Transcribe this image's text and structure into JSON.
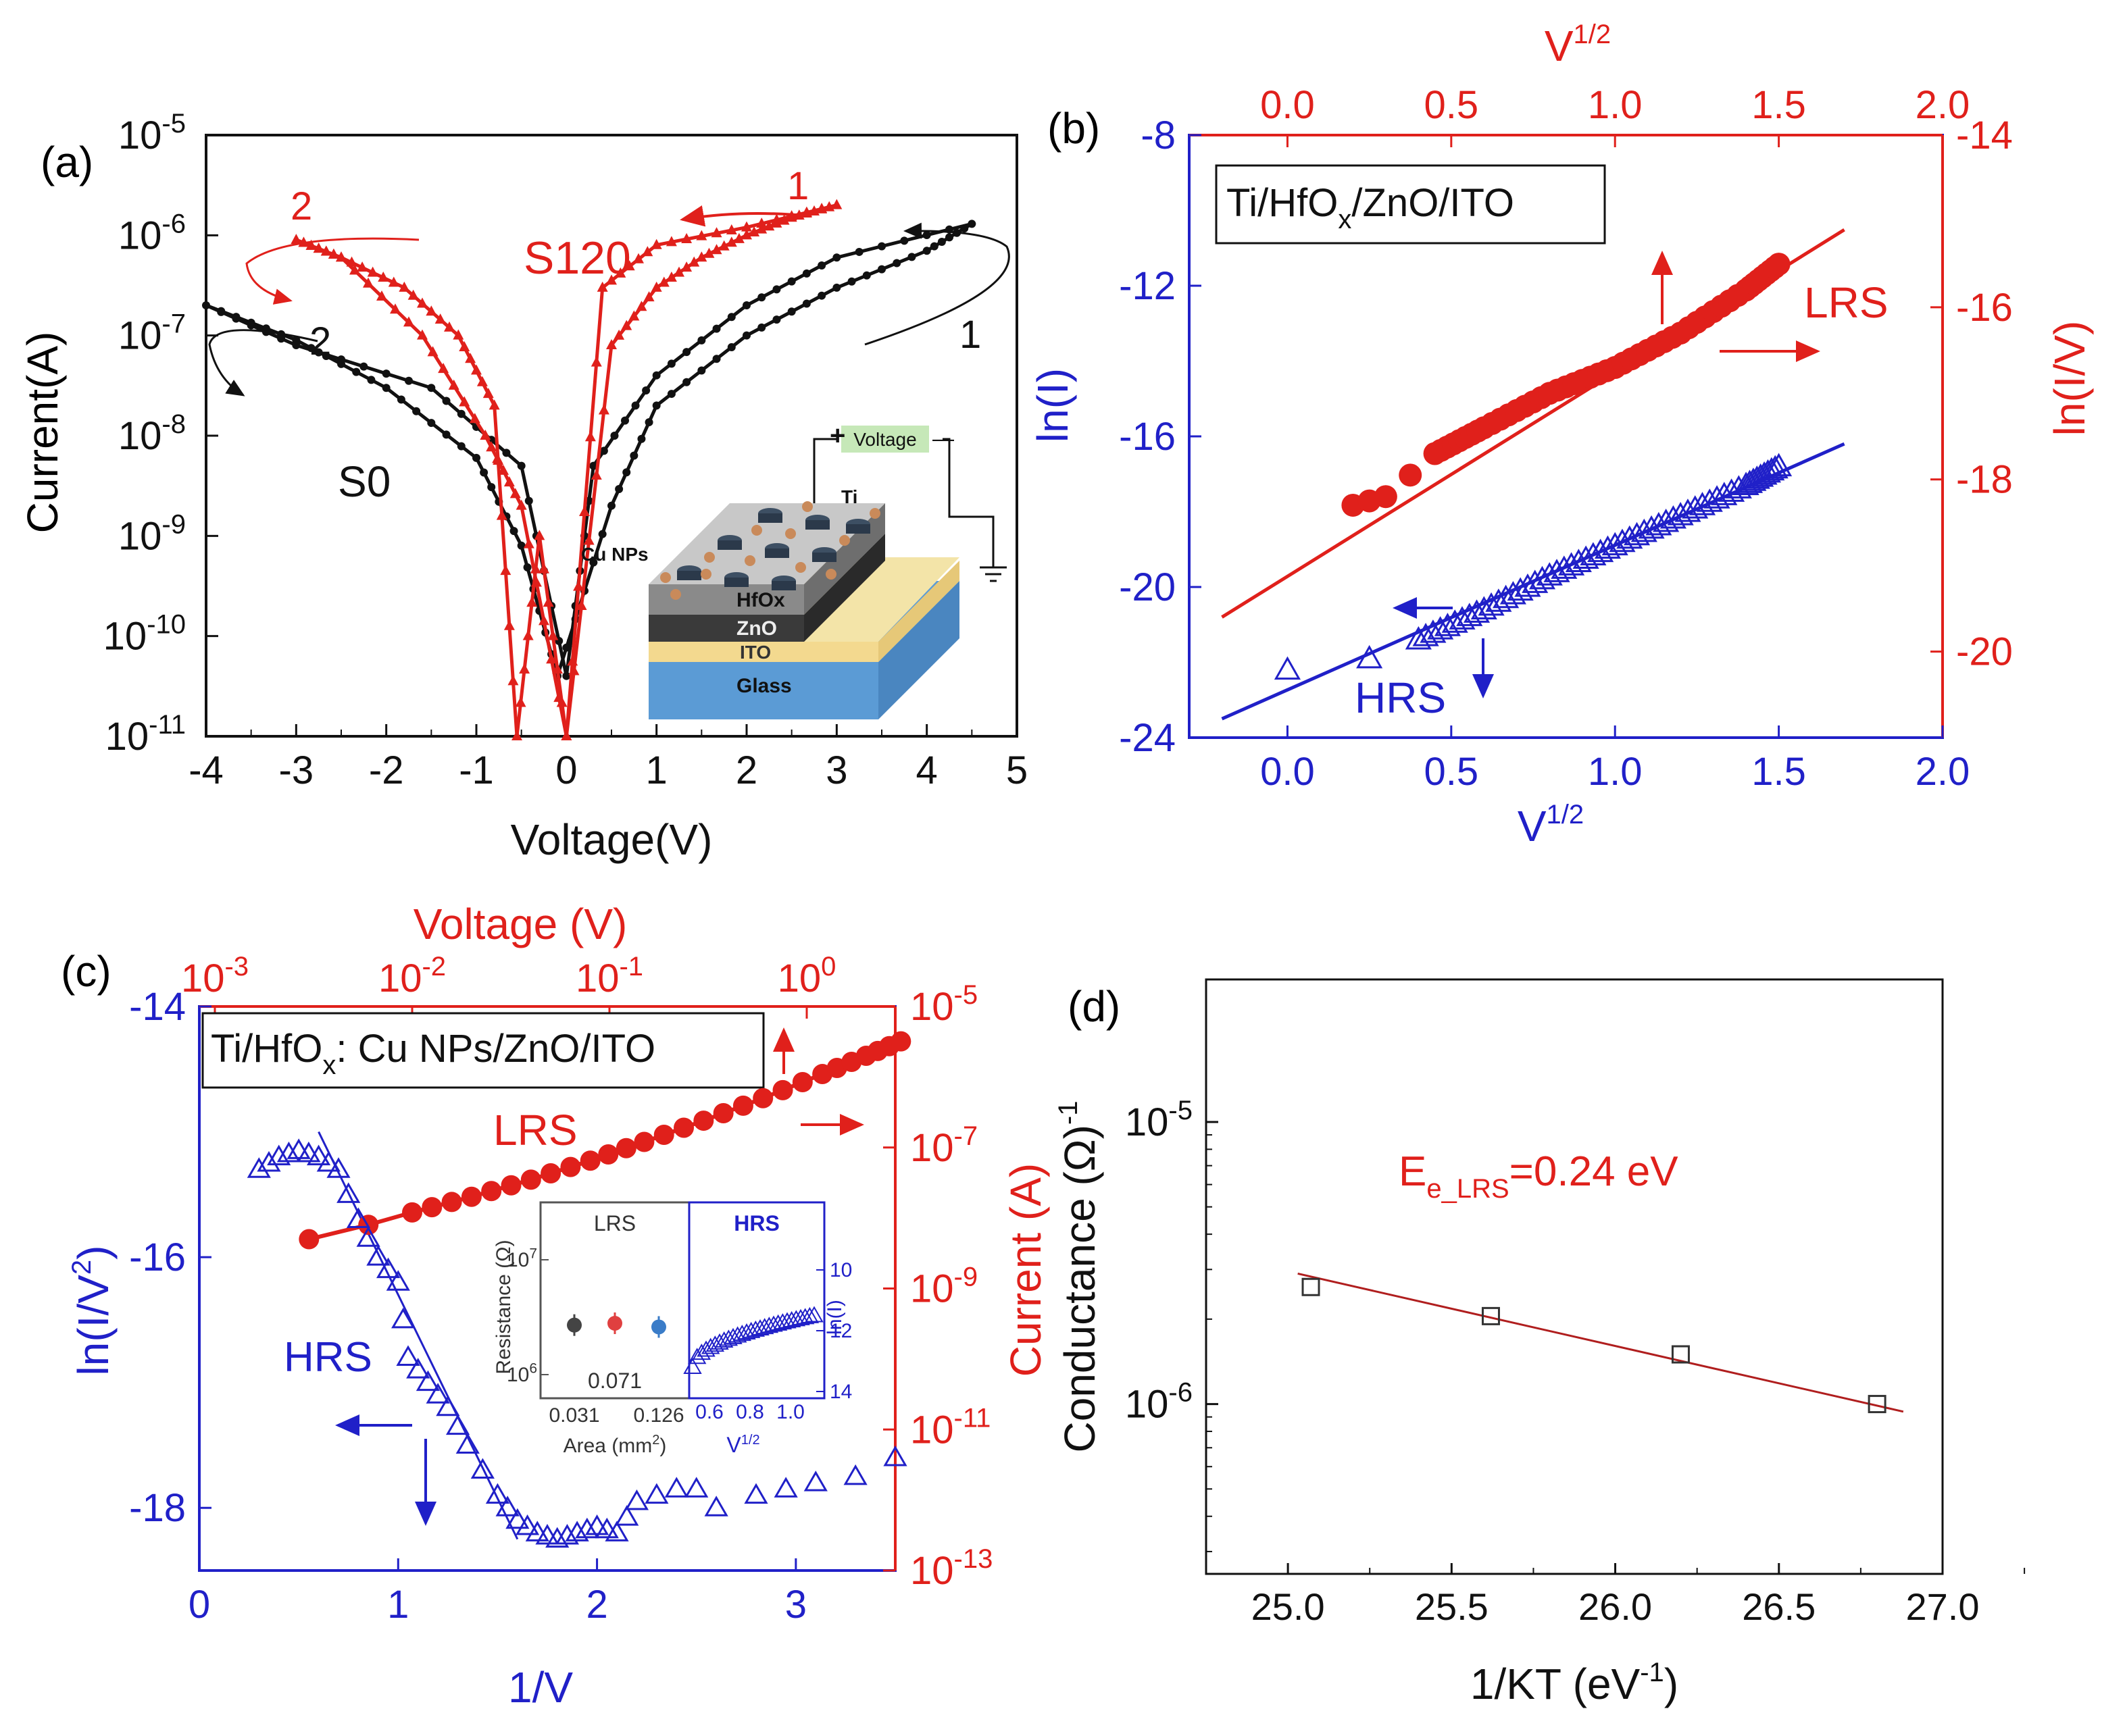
{
  "colors": {
    "red": "#e0201b",
    "blue": "#2020c8",
    "black": "#111111",
    "darkred": "#b01e1e"
  },
  "panels": {
    "a": {
      "label": "(a)",
      "xlabel": "Voltage(V)",
      "ylabel": "Current(A)",
      "xticks": [
        "-4",
        "-3",
        "-2",
        "-1",
        "0",
        "1",
        "2",
        "3",
        "4",
        "5"
      ],
      "yticks": [
        [
          "10",
          "-11"
        ],
        [
          "10",
          "-10"
        ],
        [
          "10",
          "-9"
        ],
        [
          "10",
          "-8"
        ],
        [
          "10",
          "-7"
        ],
        [
          "10",
          "-6"
        ],
        [
          "10",
          "-5"
        ]
      ],
      "s120_label": "S120",
      "s0_label": "S0",
      "arrow_labels": {
        "red1": "1",
        "red2": "2",
        "black1": "1",
        "black2": "2"
      },
      "inset": {
        "voltage": "Voltage",
        "plus": "+",
        "minus": "—",
        "ti": "Ti",
        "cu": "Cu NPs",
        "hfox": "HfOx",
        "zno": "ZnO",
        "ito": "ITO",
        "glass": "Glass"
      }
    },
    "b": {
      "label": "(b)",
      "title": "Ti/HfO",
      "title_sub": "x",
      "title_rest": "/ZnO/ITO",
      "bottom_label": "V",
      "bottom_sup": "1/2",
      "top_label": "V",
      "top_sup": "1/2",
      "left_label": "ln(I)",
      "right_label": "ln(I/V)",
      "xticks": [
        "0.0",
        "0.5",
        "1.0",
        "1.5",
        "2.0"
      ],
      "left_ticks": [
        "-24",
        "-20",
        "-16",
        "-12",
        "-8"
      ],
      "right_ticks": [
        "-20",
        "-18",
        "-16",
        "-14"
      ],
      "lrs": "LRS",
      "hrs": "HRS"
    },
    "c": {
      "label": "(c)",
      "title": "Ti/HfO",
      "title_sub": "x",
      "title_rest": ": Cu NPs/ZnO/ITO",
      "bottom_label": "1/V",
      "top_label": "Voltage (V)",
      "left_label": "ln(I/V",
      "left_sup": "2",
      "left_close": ")",
      "right_label": "Current (A)",
      "xticks": [
        "0",
        "1",
        "2",
        "3"
      ],
      "left_ticks": [
        "-18",
        "-16",
        "-14"
      ],
      "top_ticks": [
        [
          "10",
          "-3"
        ],
        [
          "10",
          "-2"
        ],
        [
          "10",
          "-1"
        ],
        [
          "10",
          "0"
        ]
      ],
      "right_ticks": [
        [
          "10",
          "-13"
        ],
        [
          "10",
          "-11"
        ],
        [
          "10",
          "-9"
        ],
        [
          "10",
          "-7"
        ],
        [
          "10",
          "-5"
        ]
      ],
      "lrs": "LRS",
      "hrs": "HRS",
      "inset": {
        "lrs": "LRS",
        "hrs": "HRS",
        "ylabel": "Resistance (Ω)",
        "xlabel": "Area (mm",
        "xlabel_sup": "2",
        "xlabel_close": ")",
        "yt": [
          [
            "10",
            "6"
          ],
          [
            "10",
            "7"
          ]
        ],
        "areas": [
          "0.031",
          "0.126"
        ],
        "mid_area": "0.071",
        "r_xticks": [
          "0.6",
          "0.8",
          "1.0"
        ],
        "r_xlabel": "V",
        "r_xlabel_sup": "1/2",
        "r_yticks": [
          "10",
          "12",
          "14"
        ],
        "r_ylabel": "ln(I)"
      }
    },
    "d": {
      "label": "(d)",
      "xlabel": "1/KT (eV",
      "xlabel_sup": "-1",
      "xlabel_close": ")",
      "ylabel": "Conductance (Ω)",
      "ylabel_sup": "-1",
      "xticks": [
        "25.0",
        "25.5",
        "26.0",
        "26.5",
        "27.0"
      ],
      "yticks": [
        [
          "10",
          "-6"
        ],
        [
          "10",
          "-5"
        ]
      ],
      "annotation": "E",
      "annotation_sub": "e_LRS",
      "annotation_rest": "=0.24 eV"
    }
  },
  "chart_data": [
    {
      "type": "line",
      "panel": "a",
      "title": "",
      "xlabel": "Voltage(V)",
      "ylabel": "Current(A)",
      "yscale": "log",
      "xlim": [
        -4,
        5
      ],
      "ylim": [
        1e-11,
        1e-05
      ],
      "series": [
        {
          "name": "S120",
          "x": [
            -3,
            -2.5,
            -1.8,
            -1.2,
            -0.8,
            -0.55,
            -0.3,
            0,
            0.5,
            1,
            1.5,
            2,
            2.5,
            3
          ],
          "y": [
            9e-07,
            6e-07,
            3e-07,
            1e-07,
            2e-08,
            1e-11,
            1e-09,
            1e-11,
            8e-08,
            3e-07,
            6e-07,
            1e-06,
            1.5e-06,
            2e-06
          ]
        },
        {
          "name": "S0",
          "x": [
            -4,
            -3,
            -2,
            -1,
            -0.5,
            -0.1,
            0.5,
            1,
            2,
            3,
            4,
            4.5
          ],
          "y": [
            2e-07,
            9e-08,
            3e-08,
            6e-09,
            8e-10,
            4e-11,
            2e-09,
            2e-08,
            1e-07,
            3e-07,
            7e-07,
            1.3e-06
          ]
        }
      ]
    },
    {
      "type": "scatter",
      "panel": "b",
      "title": "Ti/HfOx/ZnO/ITO",
      "xlabel": "V1/2",
      "ylabel": "ln(I)",
      "y2label": "ln(I/V)",
      "xlim": [
        -0.3,
        2.0
      ],
      "ylim": [
        -24,
        -8
      ],
      "y2lim": [
        -21,
        -14
      ],
      "series": [
        {
          "name": "LRS",
          "axis": "right",
          "x": [
            0.2,
            0.3,
            0.45,
            0.6,
            0.8,
            1.0,
            1.2,
            1.4,
            1.5
          ],
          "y": [
            -18.3,
            -18.2,
            -17.7,
            -17.4,
            -17.0,
            -16.7,
            -16.3,
            -15.8,
            -15.5
          ],
          "fit": {
            "x": [
              -0.2,
              1.7
            ],
            "y": [
              -19.6,
              -15.1
            ]
          }
        },
        {
          "name": "HRS",
          "axis": "left",
          "x": [
            0.0,
            0.25,
            0.4,
            0.6,
            0.8,
            1.0,
            1.2,
            1.4,
            1.5
          ],
          "y": [
            -22.2,
            -21.9,
            -21.4,
            -20.6,
            -19.7,
            -18.9,
            -18.1,
            -17.3,
            -16.8
          ],
          "fit": {
            "x": [
              -0.2,
              1.7
            ],
            "y": [
              -23.5,
              -16.2
            ]
          }
        }
      ]
    },
    {
      "type": "scatter",
      "panel": "c",
      "title": "Ti/HfOx: Cu NPs/ZnO/ITO",
      "xlabel": "1/V",
      "ylabel": "ln(I/V2)",
      "y2label": "Current (A)",
      "x2label": "Voltage (V)",
      "xlim": [
        0,
        3.5
      ],
      "ylim": [
        -18.5,
        -14
      ],
      "series": [
        {
          "name": "HRS",
          "axis": "left",
          "x": [
            0.3,
            0.4,
            0.5,
            0.6,
            0.7,
            0.8,
            0.9,
            1.0,
            1.05,
            1.15,
            1.25,
            1.35,
            1.5,
            1.6,
            1.7,
            1.8,
            1.9,
            2.0,
            2.1,
            2.2,
            2.3,
            2.4,
            2.5,
            2.6,
            2.8,
            2.95,
            3.1,
            3.3,
            3.5
          ],
          "y": [
            -15.3,
            -15.2,
            -15.15,
            -15.2,
            -15.3,
            -15.7,
            -16.0,
            -16.2,
            -16.8,
            -17.0,
            -17.2,
            -17.5,
            -17.9,
            -18.1,
            -18.2,
            -18.25,
            -18.2,
            -18.15,
            -18.2,
            -17.95,
            -17.9,
            -17.85,
            -17.85,
            -18.0,
            -17.9,
            -17.85,
            -17.8,
            -17.75,
            -17.6
          ],
          "fit": {
            "x": [
              0.6,
              1.6
            ],
            "y": [
              -15.0,
              -18.25
            ]
          }
        },
        {
          "name": "LRS",
          "axis": "right",
          "x_voltage": [
            0.003,
            0.006,
            0.01,
            0.02,
            0.04,
            0.08,
            0.15,
            0.3,
            0.6,
            1.2,
            2.0,
            3.0
          ],
          "current": [
            5e-09,
            8e-09,
            1.2e-08,
            2e-08,
            3.5e-08,
            6.5e-08,
            1.2e-07,
            2.4e-07,
            5e-07,
            1.1e-06,
            2e-06,
            3.2e-06
          ]
        }
      ]
    },
    {
      "type": "scatter",
      "panel": "c-inset",
      "title": "LRS / HRS",
      "xlabel": "Area (mm2)",
      "ylabel": "Resistance (Ω)",
      "series": [
        {
          "name": "Resistance",
          "x": [
            0.031,
            0.071,
            0.126
          ],
          "y": [
            2700000.0,
            2800000.0,
            2600000.0
          ]
        },
        {
          "name": "HRS ln(I)",
          "x": [
            0.5,
            0.6,
            0.7,
            0.8,
            0.9,
            1.0
          ],
          "y": [
            13.2,
            12.6,
            12.2,
            11.9,
            11.7,
            11.5
          ]
        }
      ]
    },
    {
      "type": "scatter",
      "panel": "d",
      "title": "",
      "xlabel": "1/KT (eV-1)",
      "ylabel": "Conductance (Ω)-1",
      "yscale": "log",
      "xlim": [
        24.75,
        27.0
      ],
      "ylim": [
        2.5e-07,
        3.2e-05
      ],
      "series": [
        {
          "name": "Conductance",
          "x": [
            25.07,
            25.62,
            26.2,
            26.8
          ],
          "y": [
            2.6e-06,
            2.05e-06,
            1.5e-06,
            1e-06
          ],
          "fit": {
            "x": [
              25.03,
              26.88
            ],
            "y": [
              2.9e-06,
              9.4e-07
            ]
          }
        }
      ]
    }
  ]
}
